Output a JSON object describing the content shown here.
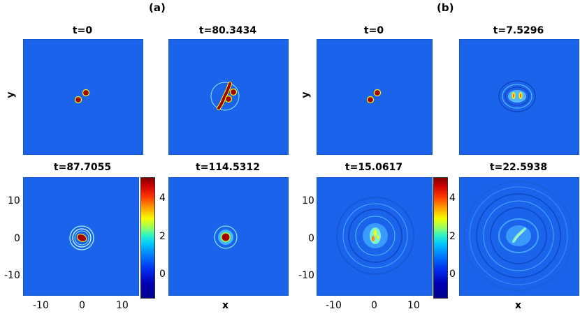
{
  "panel_labels": {
    "a": "(a)",
    "b": "(b)"
  },
  "titles": {
    "a1": "t=0",
    "a2": "t=80.3434",
    "a3": "t=87.7055",
    "a4": "t=114.5312",
    "b1": "t=0",
    "b2": "t=7.5296",
    "b3": "t=15.0617",
    "b4": "t=22.5938"
  },
  "axes": {
    "ylabel": "y",
    "xlabel": "x",
    "yticks": [
      "10",
      "0",
      "-10"
    ],
    "xticks": [
      "-10",
      "0",
      "10"
    ]
  },
  "colorbar": {
    "ticks": [
      "4",
      "2",
      "0"
    ],
    "colors": [
      "#7f0000",
      "#ff3a00",
      "#f5ff00",
      "#2cf2c5",
      "#0080ff",
      "#00008a"
    ]
  },
  "colors": {
    "background_field": "#1a63ea",
    "peak": "#a30000"
  }
}
